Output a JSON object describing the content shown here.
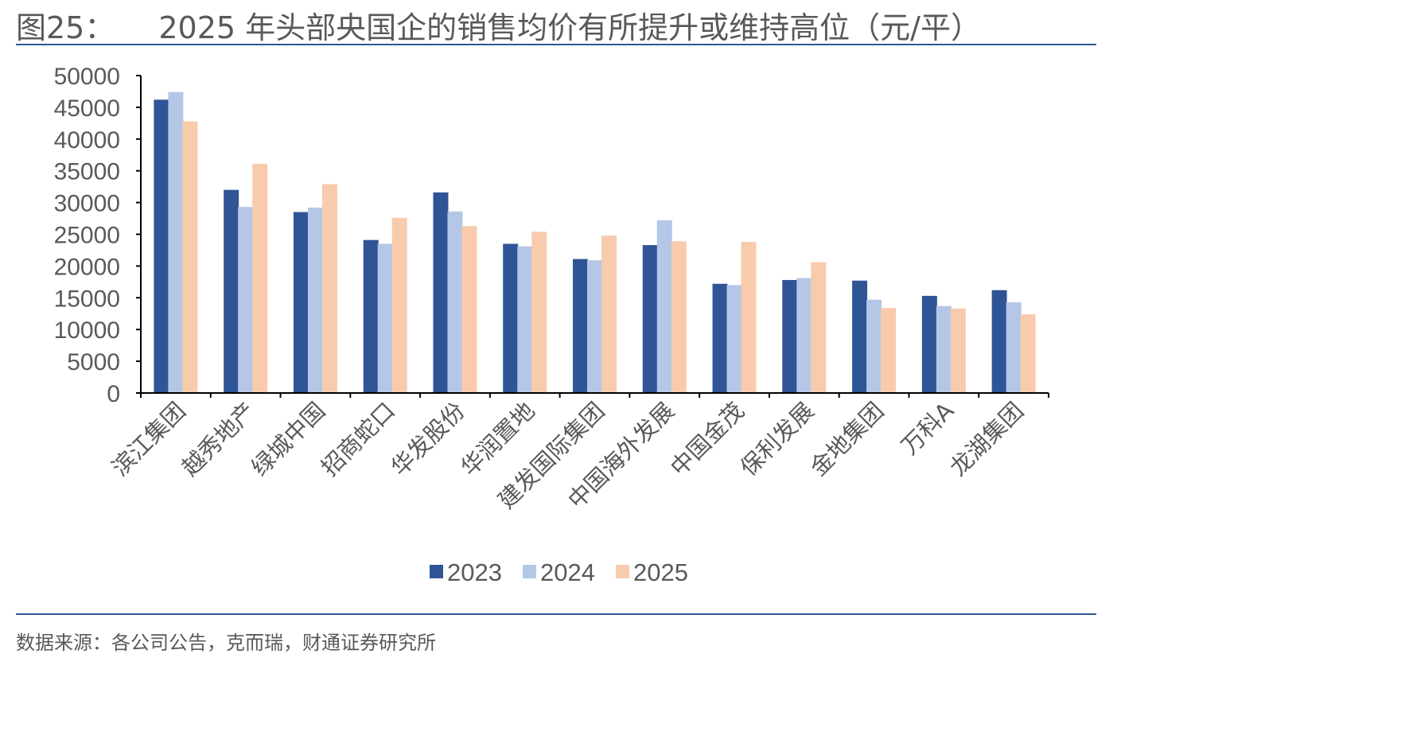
{
  "header": {
    "figure_number": "图25：",
    "title": "2025 年头部央国企的销售均价有所提升或维持高位（元/平）"
  },
  "footer": {
    "source": "数据来源：各公司公告，克而瑞，财通证券研究所"
  },
  "chart_data": {
    "type": "bar",
    "title": "2025 年头部央国企的销售均价有所提升或维持高位（元/平）",
    "xlabel": "",
    "ylabel": "",
    "ylim": [
      0,
      50000
    ],
    "yticks": [
      "0",
      "5000",
      "10000",
      "15000",
      "20000",
      "25000",
      "30000",
      "35000",
      "40000",
      "45000",
      "50000"
    ],
    "legend_position": "bottom",
    "grid": false,
    "categories": [
      "滨江集团",
      "越秀地产",
      "绿城中国",
      "招商蛇口",
      "华发股份",
      "华润置地",
      "建发国际集团",
      "中国海外发展",
      "中国金茂",
      "保利发展",
      "金地集团",
      "万科A",
      "龙湖集团"
    ],
    "series": [
      {
        "name": "2023",
        "color": "#2f5597",
        "values": [
          46200,
          32000,
          28500,
          24100,
          31600,
          23500,
          21100,
          23300,
          17200,
          17800,
          17700,
          15300,
          16200
        ]
      },
      {
        "name": "2024",
        "color": "#b4c7e7",
        "values": [
          47400,
          29300,
          29200,
          23500,
          28600,
          23100,
          20900,
          27200,
          17000,
          18100,
          14700,
          13700,
          14300
        ]
      },
      {
        "name": "2025",
        "color": "#f8cbad",
        "values": [
          42800,
          36100,
          32900,
          27600,
          26300,
          25400,
          24800,
          23900,
          23800,
          20600,
          13400,
          13300,
          12400
        ]
      }
    ]
  }
}
